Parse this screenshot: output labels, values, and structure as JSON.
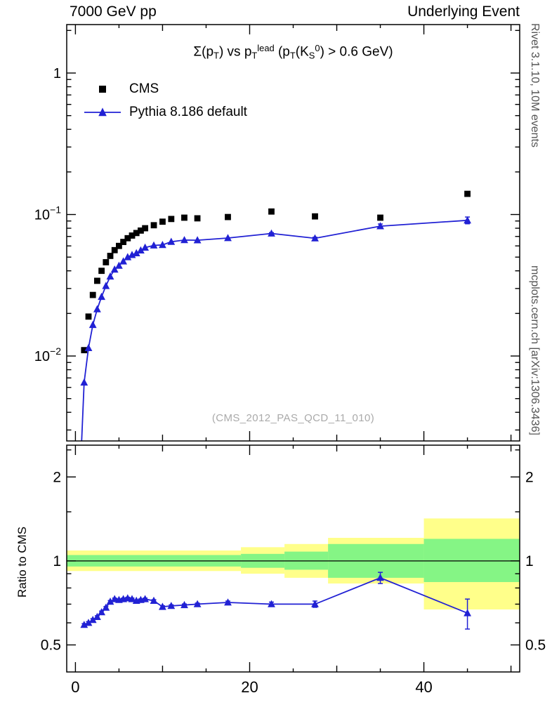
{
  "header": {
    "left": "7000 GeV pp",
    "right": "Underlying Event"
  },
  "side": {
    "rivet": "Rivet 3.1.10, 10M events",
    "mcplots": "mcplots.cern.ch [arXiv:1306.3436]"
  },
  "ratio": {
    "ylabel": "Ratio to CMS"
  },
  "main": {
    "title_parts": [
      {
        "t": "Σ(p"
      },
      {
        "t": "T",
        "sub": true
      },
      {
        "t": ") vs p"
      },
      {
        "t": "T",
        "sub": true
      },
      {
        "t": "lead",
        "sup": true
      },
      {
        "t": " (p"
      },
      {
        "t": "T",
        "sub": true
      },
      {
        "t": "(K"
      },
      {
        "t": "S",
        "sub": true
      },
      {
        "t": "0",
        "sup": true
      },
      {
        "t": ") > 0.6 GeV)"
      }
    ],
    "watermark": "(CMS_2012_PAS_QCD_11_010)",
    "legend": [
      {
        "label": "CMS",
        "marker": "square",
        "color": "#000000"
      },
      {
        "label": "Pythia 8.186 default",
        "marker": "triangle-line",
        "color": "#2121d4"
      }
    ]
  },
  "chart_data": [
    {
      "type": "line",
      "title": "Sum(pT) vs pT^lead (pT(K0S) > 0.6 GeV)",
      "xlabel": "",
      "ylabel": "",
      "yscale": "log",
      "xlim": [
        -1,
        51
      ],
      "ylim": [
        0.00251,
        2.2
      ],
      "xticks": {
        "major": [
          0,
          20,
          40
        ],
        "medium": [
          10,
          30,
          50
        ],
        "minor": [
          5,
          15,
          25,
          35,
          45
        ]
      },
      "yticks": {
        "labeled": [
          0.01,
          0.1,
          1
        ],
        "minor": [
          0.003,
          0.004,
          0.005,
          0.006,
          0.007,
          0.008,
          0.009,
          0.02,
          0.03,
          0.04,
          0.05,
          0.06,
          0.07,
          0.08,
          0.09,
          0.2,
          0.3,
          0.4,
          0.5,
          0.6,
          0.7,
          0.8,
          0.9,
          2
        ]
      },
      "series": [
        {
          "name": "CMS",
          "marker": "square",
          "color": "#000000",
          "line": false,
          "x": [
            1,
            1.5,
            2,
            2.5,
            3,
            3.5,
            4,
            4.5,
            5,
            5.5,
            6,
            6.5,
            7,
            7.5,
            8,
            9,
            10,
            11,
            12.5,
            14,
            17.5,
            22.5,
            27.5,
            35,
            45
          ],
          "y": [
            0.011,
            0.019,
            0.027,
            0.034,
            0.04,
            0.046,
            0.051,
            0.056,
            0.06,
            0.064,
            0.068,
            0.071,
            0.074,
            0.077,
            0.08,
            0.084,
            0.089,
            0.093,
            0.095,
            0.094,
            0.096,
            0.105,
            0.097,
            0.095,
            0.14
          ]
        },
        {
          "name": "Pythia 8.186 default",
          "marker": "triangle",
          "color": "#2121d4",
          "line": true,
          "pre": [
            0.7,
            0.0024
          ],
          "x": [
            1,
            1.5,
            2,
            2.5,
            3,
            3.5,
            4,
            4.5,
            5,
            5.5,
            6,
            6.5,
            7,
            7.5,
            8,
            9,
            10,
            11,
            12.5,
            14,
            17.5,
            22.5,
            27.5,
            35,
            45
          ],
          "y": [
            0.0065,
            0.0114,
            0.0166,
            0.0214,
            0.0262,
            0.0313,
            0.0365,
            0.0409,
            0.0435,
            0.0467,
            0.05,
            0.0518,
            0.0533,
            0.0558,
            0.0584,
            0.0605,
            0.061,
            0.0642,
            0.066,
            0.0658,
            0.0682,
            0.0735,
            0.0679,
            0.0827,
            0.091
          ],
          "yerr": [
            0,
            0,
            0,
            0,
            0,
            0,
            0,
            0,
            0,
            0,
            0,
            0,
            0,
            0,
            0,
            0,
            0,
            0,
            0,
            0,
            0,
            0.001,
            0.0012,
            0.003,
            0.005
          ]
        }
      ]
    },
    {
      "type": "ratio",
      "ylabel": "Ratio to CMS",
      "yscale": "log",
      "ylim": [
        0.4,
        2.6
      ],
      "unity_line": 1,
      "yticks": {
        "labeled": [
          0.5,
          1,
          2
        ],
        "minor": [
          0.6,
          0.7,
          0.8,
          0.9,
          1.5,
          2.5
        ]
      },
      "bands": [
        {
          "name": "data-uncertainty-outer-band",
          "color": "#ffff8a",
          "segments": [
            [
              -1,
              19,
              0.92,
              1.09
            ],
            [
              19,
              24,
              0.9,
              1.12
            ],
            [
              24,
              29,
              0.87,
              1.15
            ],
            [
              29,
              40,
              0.83,
              1.21
            ],
            [
              40,
              51,
              0.67,
              1.42
            ]
          ]
        },
        {
          "name": "data-uncertainty-inner-band",
          "color": "#85f585",
          "segments": [
            [
              -1,
              19,
              0.955,
              1.05
            ],
            [
              19,
              24,
              0.945,
              1.06
            ],
            [
              24,
              29,
              0.93,
              1.08
            ],
            [
              29,
              40,
              0.87,
              1.15
            ],
            [
              40,
              51,
              0.84,
              1.2
            ]
          ]
        }
      ],
      "series": [
        {
          "name": "Pythia 8.186 default / CMS",
          "marker": "triangle",
          "color": "#2121d4",
          "line": true,
          "x": [
            1,
            1.5,
            2,
            2.5,
            3,
            3.5,
            4,
            4.5,
            5,
            5.5,
            6,
            6.5,
            7,
            7.5,
            8,
            9,
            10,
            11,
            12.5,
            14,
            17.5,
            22.5,
            27.5,
            35,
            45
          ],
          "y": [
            0.59,
            0.6,
            0.615,
            0.63,
            0.655,
            0.68,
            0.715,
            0.73,
            0.725,
            0.73,
            0.735,
            0.73,
            0.72,
            0.725,
            0.73,
            0.72,
            0.685,
            0.69,
            0.695,
            0.7,
            0.71,
            0.7,
            0.7,
            0.87,
            0.65
          ],
          "yerr": [
            0.006,
            0.006,
            0.006,
            0.006,
            0.006,
            0.006,
            0.006,
            0.006,
            0.006,
            0.006,
            0.006,
            0.006,
            0.006,
            0.006,
            0.006,
            0.006,
            0.006,
            0.006,
            0.006,
            0.006,
            0.008,
            0.012,
            0.018,
            0.04,
            0.08
          ]
        }
      ]
    }
  ]
}
